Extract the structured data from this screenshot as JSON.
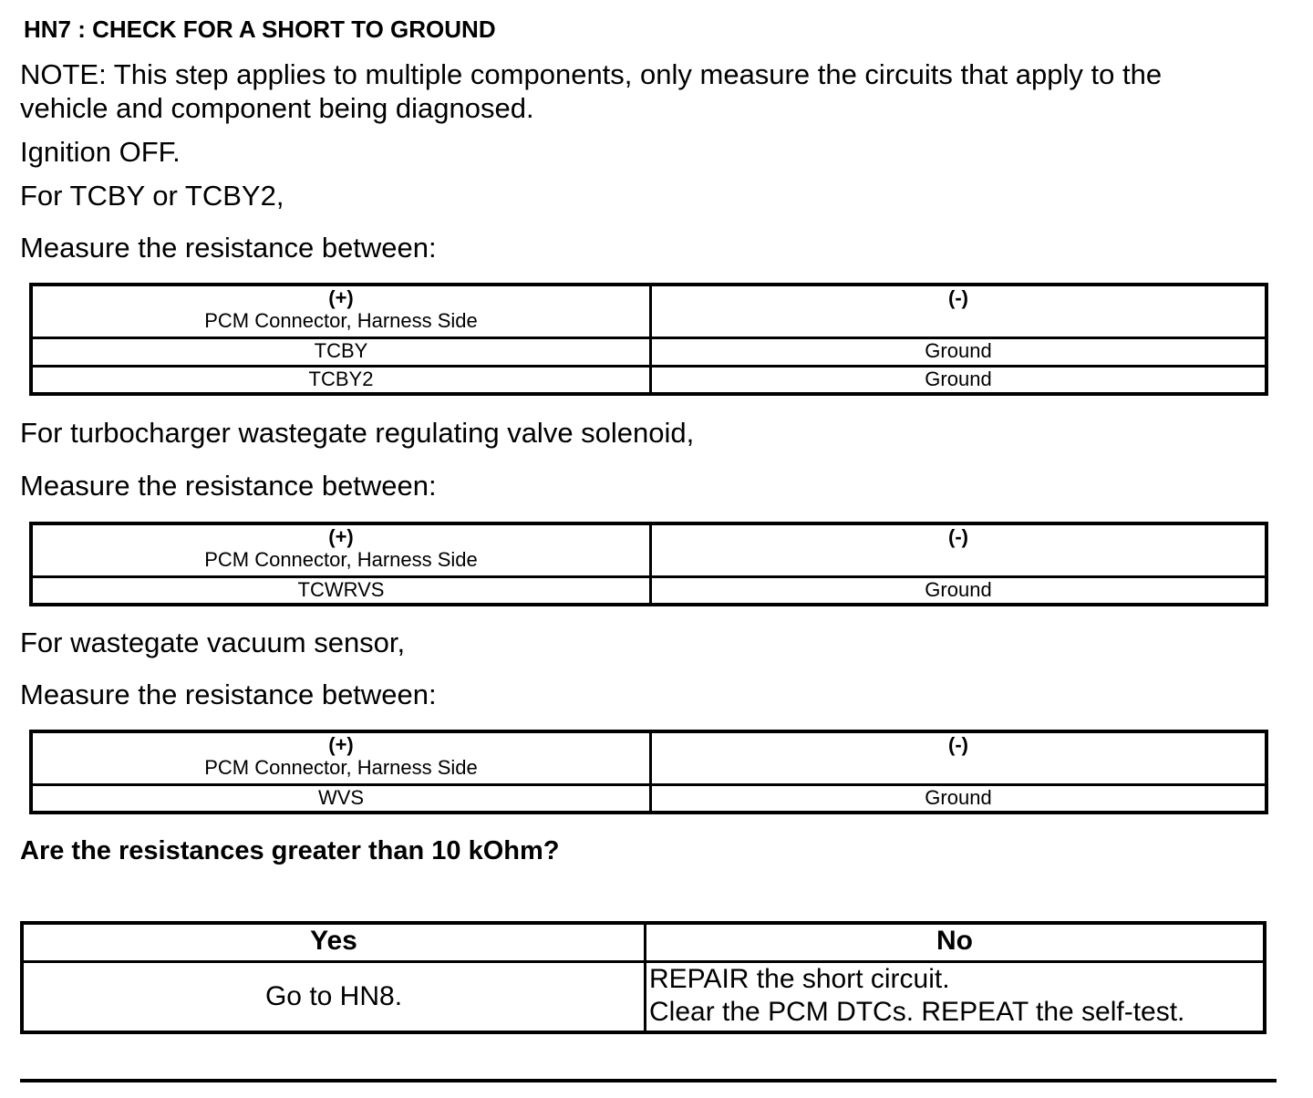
{
  "title": "HN7 : CHECK FOR A SHORT TO GROUND",
  "note_line1": "NOTE: This step applies to multiple components, only measure the circuits that apply to the",
  "note_line2": "vehicle and component being diagnosed.",
  "ignition": "Ignition OFF.",
  "sections": [
    {
      "intro": "For TCBY or TCBY2,",
      "measure": "Measure the resistance between:",
      "header": {
        "plus": "(+)",
        "plus_sub": "PCM Connector, Harness Side",
        "minus": "(-)"
      },
      "rows": [
        [
          "TCBY",
          "Ground"
        ],
        [
          "TCBY2",
          "Ground"
        ]
      ]
    },
    {
      "intro": "For turbocharger wastegate regulating valve solenoid,",
      "measure": "Measure the resistance between:",
      "header": {
        "plus": "(+)",
        "plus_sub": "PCM Connector, Harness Side",
        "minus": "(-)"
      },
      "rows": [
        [
          "TCWRVS",
          "Ground"
        ]
      ]
    },
    {
      "intro": "For wastegate vacuum sensor,",
      "measure": "Measure the resistance between:",
      "header": {
        "plus": "(+)",
        "plus_sub": "PCM Connector, Harness Side",
        "minus": "(-)"
      },
      "rows": [
        [
          "WVS",
          "Ground"
        ]
      ]
    }
  ],
  "question": "Are the resistances greater than 10 kOhm?",
  "decision": {
    "yes_label": "Yes",
    "no_label": "No",
    "yes_action": "Go to HN8.",
    "no_action_1": "REPAIR the short circuit.",
    "no_action_2": "Clear the PCM DTCs. REPEAT the self-test."
  }
}
